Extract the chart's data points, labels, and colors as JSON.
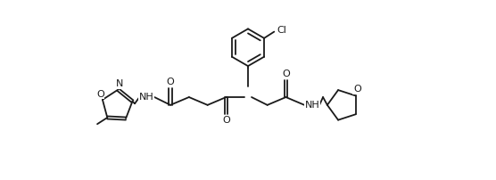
{
  "bg": "#ffffff",
  "lc": "#1a1a1a",
  "lw": 1.3,
  "fs": 7.5,
  "fig_w": 5.56,
  "fig_h": 2.02,
  "dpi": 100,
  "xlim": [
    0.0,
    11.0
  ],
  "ylim": [
    0.5,
    5.5
  ]
}
